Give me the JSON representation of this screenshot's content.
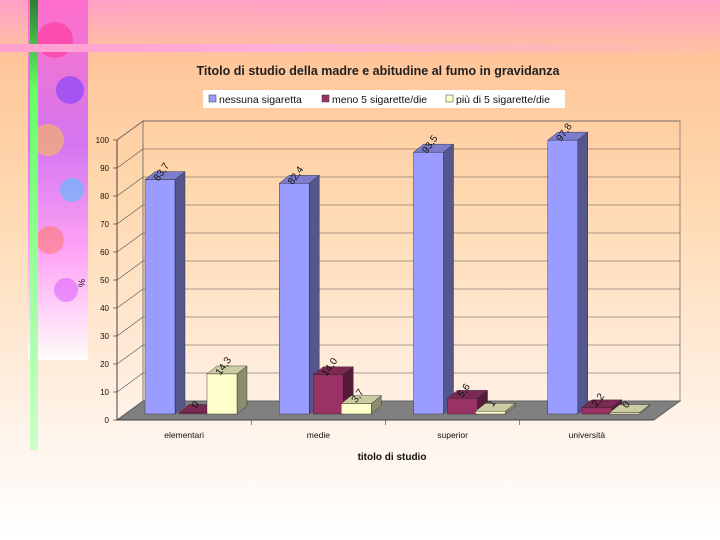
{
  "chart_data": {
    "type": "bar",
    "title": "Titolo di studio della madre e abitudine al fumo in gravidanza",
    "xlabel": "titolo di studio",
    "ylabel": "%",
    "categories": [
      "elementari",
      "medie",
      "superior",
      "università"
    ],
    "series": [
      {
        "name": "nessuna sigaretta",
        "values": [
          83.7,
          82.4,
          93.5,
          97.8
        ],
        "labels": [
          "83,7",
          "82,4",
          "93,5",
          "97,8"
        ]
      },
      {
        "name": "meno 5 sigarette/die",
        "values": [
          0,
          14.0,
          5.6,
          2.2
        ],
        "labels": [
          "0",
          "14,0",
          "5,6",
          "2,2"
        ]
      },
      {
        "name": "più di 5 sigarette/die",
        "values": [
          14.3,
          3.7,
          1,
          0
        ],
        "labels": [
          "14,3",
          "3,7",
          "1",
          "0"
        ]
      }
    ],
    "yticks": [
      "0",
      "10",
      "20",
      "30",
      "40",
      "50",
      "60",
      "70",
      "80",
      "90",
      "100"
    ],
    "ylim": [
      0,
      100
    ],
    "grid": true,
    "legend_position": "top",
    "colors": {
      "series": [
        "#9b9cff",
        "#993366",
        "#ffffcc"
      ],
      "floor": "#808080",
      "wall": "#c0c0c0"
    }
  }
}
